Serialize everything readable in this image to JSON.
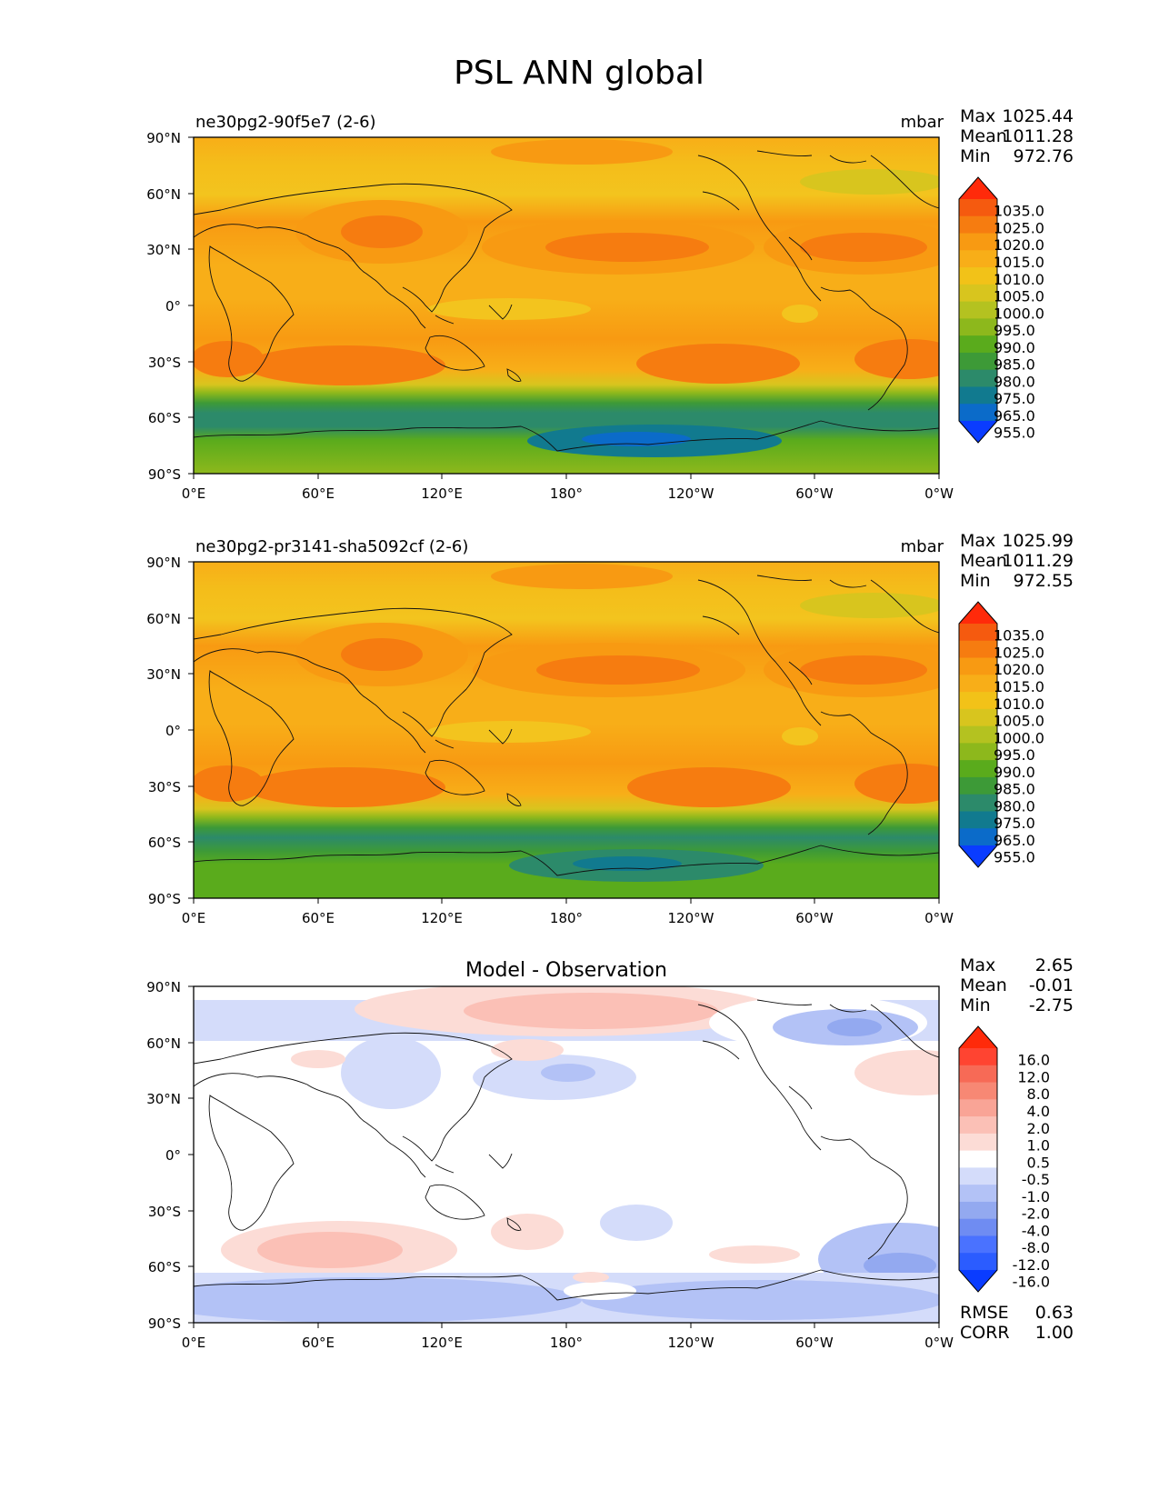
{
  "figure_title": "PSL ANN global",
  "colors": {
    "psl_levels": [
      "#0a3cff",
      "#0b6bc9",
      "#117a8f",
      "#2c8a6a",
      "#3d9a37",
      "#5aab1c",
      "#8db81c",
      "#b4c220",
      "#d8c51e",
      "#f2c218",
      "#f8ae18",
      "#f89a12",
      "#f67c10",
      "#f55a0f",
      "#ff2a0a"
    ],
    "diff_levels": [
      "#0a3cff",
      "#2b5cff",
      "#4a72ff",
      "#6f8cf2",
      "#93a9f0",
      "#b3c2f6",
      "#d4dcfa",
      "#ffffff",
      "#fcdcd6",
      "#fbc0b6",
      "#f9a496",
      "#f78874",
      "#f76a56",
      "#ff4431",
      "#ff2a0a"
    ]
  },
  "chart_data": [
    {
      "type": "heatmap",
      "panel": "test",
      "title": "ne30pg2-90f5e7 (2-6)",
      "units": "mbar",
      "stats": [
        {
          "label": "Max",
          "value": "1025.44"
        },
        {
          "label": "Mean",
          "value": "1011.28"
        },
        {
          "label": "Min",
          "value": "972.76"
        }
      ],
      "xticks": [
        "0°E",
        "60°E",
        "120°E",
        "180°",
        "120°W",
        "60°W",
        "0°W"
      ],
      "yticks": [
        "90°N",
        "60°N",
        "30°N",
        "0°",
        "30°S",
        "60°S",
        "90°S"
      ],
      "xlim": [
        0,
        360
      ],
      "ylim": [
        -90,
        90
      ],
      "colorbar_labels": [
        "1035.0",
        "1025.0",
        "1020.0",
        "1015.0",
        "1010.0",
        "1005.0",
        "1000.0",
        "995.0",
        "990.0",
        "985.0",
        "980.0",
        "975.0",
        "965.0",
        "955.0"
      ]
    },
    {
      "type": "heatmap",
      "panel": "reference",
      "title": "ne30pg2-pr3141-sha5092cf (2-6)",
      "units": "mbar",
      "stats": [
        {
          "label": "Max",
          "value": "1025.99"
        },
        {
          "label": "Mean",
          "value": "1011.29"
        },
        {
          "label": "Min",
          "value": "972.55"
        }
      ],
      "xticks": [
        "0°E",
        "60°E",
        "120°E",
        "180°",
        "120°W",
        "60°W",
        "0°W"
      ],
      "yticks": [
        "90°N",
        "60°N",
        "30°N",
        "0°",
        "30°S",
        "60°S",
        "90°S"
      ],
      "xlim": [
        0,
        360
      ],
      "ylim": [
        -90,
        90
      ],
      "colorbar_labels": [
        "1035.0",
        "1025.0",
        "1020.0",
        "1015.0",
        "1010.0",
        "1005.0",
        "1000.0",
        "995.0",
        "990.0",
        "985.0",
        "980.0",
        "975.0",
        "965.0",
        "955.0"
      ]
    },
    {
      "type": "heatmap",
      "panel": "diff",
      "title": "Model - Observation",
      "units": "",
      "stats": [
        {
          "label": "Max",
          "value": "2.65"
        },
        {
          "label": "Mean",
          "value": "-0.01"
        },
        {
          "label": "Min",
          "value": "-2.75"
        }
      ],
      "metrics": [
        {
          "label": "RMSE",
          "value": "0.63"
        },
        {
          "label": "CORR",
          "value": "1.00"
        }
      ],
      "xticks": [
        "0°E",
        "60°E",
        "120°E",
        "180°",
        "120°W",
        "60°W",
        "0°W"
      ],
      "yticks": [
        "90°N",
        "60°N",
        "30°N",
        "0°",
        "30°S",
        "60°S",
        "90°S"
      ],
      "xlim": [
        0,
        360
      ],
      "ylim": [
        -90,
        90
      ],
      "colorbar_labels": [
        "16.0",
        "12.0",
        "8.0",
        "4.0",
        "2.0",
        "1.0",
        "0.5",
        "-0.5",
        "-1.0",
        "-2.0",
        "-4.0",
        "-8.0",
        "-12.0",
        "-16.0"
      ]
    }
  ]
}
